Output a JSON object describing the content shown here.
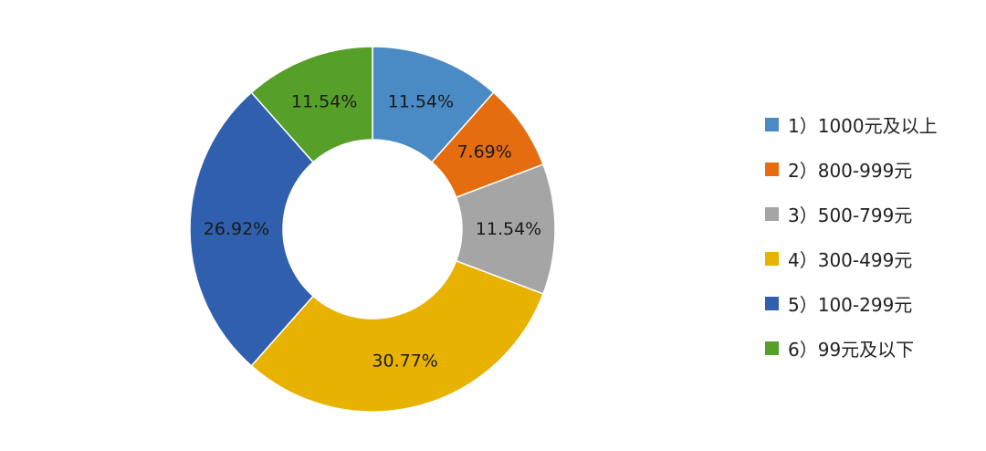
{
  "chart_data": {
    "type": "pie",
    "donut": true,
    "legend_position": "right",
    "categories": [
      "1）1000元及以上",
      "2）800-999元",
      "3）500-799元",
      "4）300-499元",
      "5）100-299元",
      "6）99元及以下"
    ],
    "values": [
      11.54,
      7.69,
      11.54,
      30.77,
      26.92,
      11.54
    ],
    "labels": [
      "11.54%",
      "7.69%",
      "11.54%",
      "30.77%",
      "26.92%",
      "11.54%"
    ],
    "colors": [
      "#4a8bc6",
      "#e56d10",
      "#a5a5a5",
      "#e8b200",
      "#2f5fad",
      "#56a02a"
    ]
  }
}
